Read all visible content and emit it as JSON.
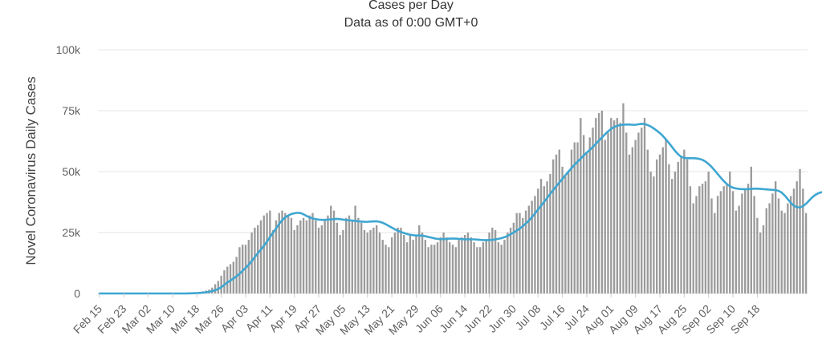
{
  "chart_data": {
    "type": "bar",
    "title": "Cases per Day",
    "subtitle": "Data as of 0:00 GMT+0",
    "ylabel": "Novel Coronavirus Daily Cases",
    "ylim": [
      0,
      100000
    ],
    "yticks": [
      0,
      25000,
      50000,
      75000,
      100000
    ],
    "ytick_labels": [
      "0",
      "25k",
      "50k",
      "75k",
      "100k"
    ],
    "start_date": "Feb 15",
    "x_tick_labels": [
      "Feb 15",
      "Feb 23",
      "Mar 02",
      "Mar 10",
      "Mar 18",
      "Mar 26",
      "Apr 03",
      "Apr 11",
      "Apr 19",
      "Apr 27",
      "May 05",
      "May 13",
      "May 21",
      "May 29",
      "Jun 06",
      "Jun 14",
      "Jun 22",
      "Jun 30",
      "Jul 08",
      "Jul 16",
      "Jul 24",
      "Aug 01",
      "Aug 09",
      "Aug 17",
      "Aug 25",
      "Sep 02",
      "Sep 10",
      "Sep 18"
    ],
    "grid": true,
    "colors": {
      "bars": "#9b9b9b",
      "line": "#3ea6d1",
      "grid": "#e6e6e6"
    },
    "series": [
      {
        "type": "bar",
        "values": [
          0,
          0,
          0,
          0,
          0,
          0,
          0,
          0,
          0,
          0,
          0,
          0,
          0,
          0,
          0,
          0,
          0,
          0,
          0,
          0,
          0,
          0,
          0,
          0,
          0,
          0,
          0,
          0,
          0,
          200,
          300,
          400,
          500,
          700,
          900,
          1200,
          1600,
          2400,
          3800,
          5100,
          7300,
          9500,
          11000,
          12000,
          13000,
          15000,
          19000,
          20000,
          20000,
          22000,
          25000,
          27000,
          28000,
          30000,
          32000,
          33000,
          34000,
          26000,
          30000,
          33000,
          34000,
          33000,
          32000,
          31000,
          26000,
          28000,
          30000,
          31000,
          30000,
          32000,
          33000,
          30000,
          27000,
          28000,
          30000,
          32000,
          36000,
          34000,
          29000,
          24000,
          26000,
          31000,
          32000,
          30000,
          36000,
          31000,
          29000,
          26000,
          25000,
          26000,
          27000,
          28000,
          25000,
          22000,
          20000,
          19000,
          23000,
          25000,
          27000,
          27000,
          24000,
          21000,
          24000,
          22000,
          24000,
          28000,
          25000,
          22000,
          19000,
          20000,
          20000,
          21000,
          23000,
          25000,
          23000,
          21000,
          20000,
          19000,
          22000,
          23000,
          24000,
          25000,
          23000,
          21000,
          19000,
          19000,
          21000,
          22000,
          25000,
          27000,
          26000,
          21000,
          20000,
          22000,
          25000,
          27000,
          29000,
          33000,
          33000,
          31000,
          34000,
          36000,
          38000,
          40000,
          43000,
          47000,
          44000,
          46000,
          49000,
          55000,
          57000,
          59000,
          52000,
          48000,
          50000,
          59000,
          62000,
          62000,
          72000,
          65000,
          58000,
          64000,
          68000,
          72000,
          74000,
          75000,
          63000,
          66000,
          72000,
          71000,
          72000,
          70000,
          78000,
          66000,
          57000,
          60000,
          63000,
          66000,
          68000,
          72000,
          59000,
          50000,
          48000,
          55000,
          57000,
          60000,
          63000,
          53000,
          47000,
          50000,
          54000,
          56000,
          59000,
          55000,
          44000,
          37000,
          40000,
          44000,
          45000,
          46000,
          50000,
          39000,
          33000,
          40000,
          42000,
          44000,
          45000,
          50000,
          42000,
          34000,
          36000,
          41000,
          43000,
          45000,
          52000,
          40000,
          31000,
          25000,
          28000,
          35000,
          37000,
          41000,
          46000,
          39000,
          34000,
          33000,
          37000,
          40000,
          43000,
          46000,
          51000,
          43000,
          33000
        ]
      },
      {
        "type": "line",
        "values": [
          0,
          0,
          0,
          0,
          0,
          0,
          0,
          0,
          0,
          0,
          0,
          0,
          0,
          0,
          0,
          0,
          0,
          0,
          0,
          0,
          0,
          0,
          0,
          0,
          0,
          0,
          0,
          0,
          0,
          21,
          50,
          92,
          150,
          228,
          329,
          471,
          657,
          929,
          1343,
          1857,
          2557,
          3543,
          4529,
          5271,
          6128,
          7000,
          8100,
          9300,
          10500,
          11800,
          13300,
          14900,
          16500,
          18000,
          19600,
          21300,
          23100,
          24900,
          26700,
          28500,
          30100,
          31200,
          32000,
          32600,
          32900,
          33100,
          33000,
          32500,
          31800,
          31200,
          30800,
          30500,
          30300,
          30200,
          30200,
          30300,
          30400,
          30500,
          30600,
          30500,
          30300,
          30100,
          30000,
          29900,
          29800,
          29600,
          29500,
          29400,
          29400,
          29500,
          29600,
          29600,
          29400,
          29000,
          28400,
          27700,
          27000,
          26300,
          25700,
          25200,
          24800,
          24400,
          24100,
          23900,
          23800,
          23800,
          23700,
          23500,
          23200,
          22900,
          22600,
          22400,
          22300,
          22300,
          22400,
          22500,
          22500,
          22500,
          22400,
          22300,
          22200,
          22200,
          22200,
          22200,
          22100,
          22000,
          21900,
          21900,
          21900,
          22000,
          22200,
          22400,
          22700,
          23100,
          23600,
          24300,
          25000,
          25800,
          26600,
          27600,
          28700,
          29900,
          31300,
          32800,
          34400,
          36000,
          37600,
          39200,
          40800,
          42400,
          44000,
          45500,
          47000,
          48500,
          50000,
          51400,
          52800,
          54100,
          55300,
          56600,
          57800,
          58900,
          60100,
          61400,
          62700,
          64000,
          65300,
          66500,
          67500,
          68300,
          68800,
          69100,
          69200,
          69300,
          69300,
          69200,
          69200,
          69400,
          69600,
          69500,
          69100,
          68500,
          67700,
          66800,
          65800,
          64600,
          63200,
          61700,
          60100,
          58500,
          57100,
          56100,
          55600,
          55500,
          55500,
          55500,
          55400,
          55200,
          54800,
          54100,
          53100,
          51900,
          50500,
          49000,
          47500,
          46100,
          44900,
          44000,
          43400,
          43100,
          42900,
          42800,
          42800,
          42800,
          42900,
          43000,
          43000,
          42900,
          42800,
          42700,
          42600,
          42500,
          42400,
          42100,
          41400,
          40200,
          38700,
          37200,
          36000,
          35400,
          35300,
          35800,
          36800,
          38100,
          39400,
          40400,
          41100,
          41500,
          41800
        ]
      }
    ]
  }
}
